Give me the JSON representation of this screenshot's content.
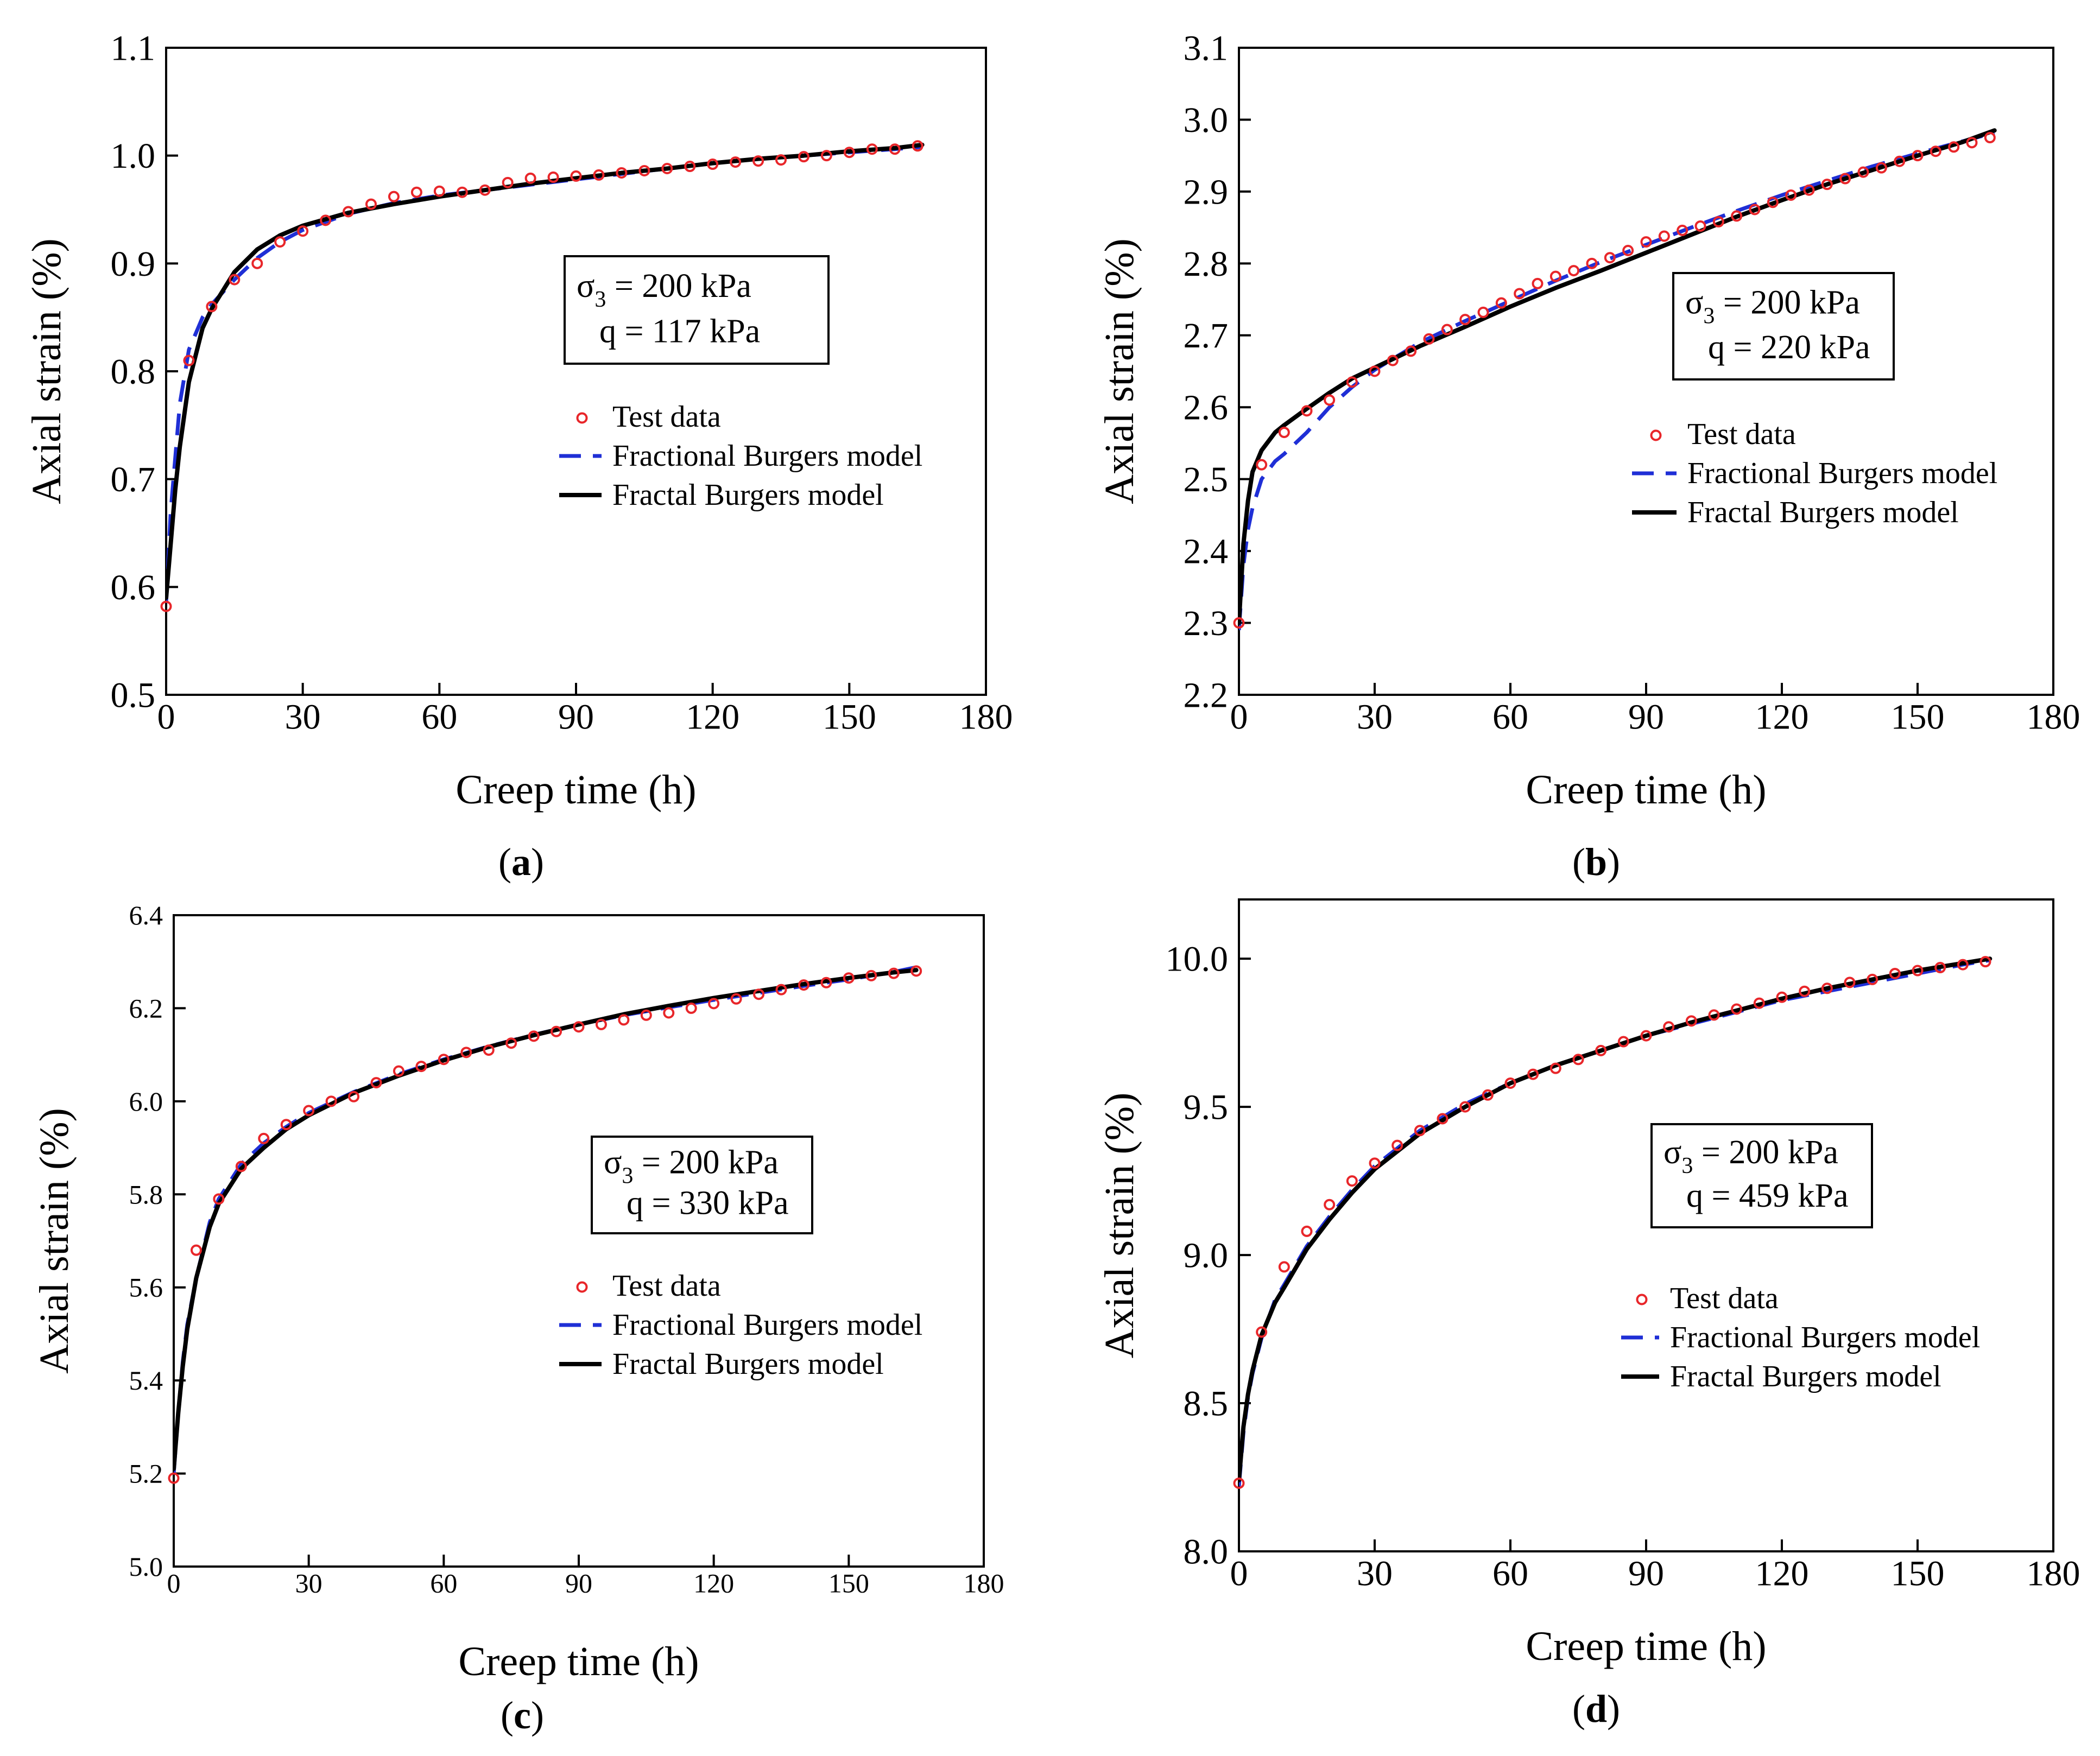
{
  "figure": {
    "panels": [
      {
        "id": "a",
        "label_open": "(",
        "label_letter": "a",
        "label_close": ")",
        "annotation": {
          "line1_prefix": "σ",
          "line1_sub": "3",
          "line1_suffix": " = 200 kPa",
          "line2": "q = 117 kPa"
        }
      },
      {
        "id": "b",
        "label_open": "(",
        "label_letter": "b",
        "label_close": ")",
        "annotation": {
          "line1_prefix": "σ",
          "line1_sub": "3",
          "line1_suffix": " = 200 kPa",
          "line2": "q = 220 kPa"
        }
      },
      {
        "id": "c",
        "label_open": "(",
        "label_letter": "c",
        "label_close": ")",
        "annotation": {
          "line1_prefix": "σ",
          "line1_sub": "3",
          "line1_suffix": " = 200 kPa",
          "line2": "q = 330 kPa"
        }
      },
      {
        "id": "d",
        "label_open": "(",
        "label_letter": "d",
        "label_close": ")",
        "annotation": {
          "line1_prefix": "σ",
          "line1_sub": "3",
          "line1_suffix": " = 200 kPa",
          "line2": "q = 459 kPa"
        }
      }
    ]
  },
  "colors": {
    "test_data": "#e8262a",
    "fractional": "#1f2fd6",
    "fractal": "#000000",
    "axis": "#000000"
  },
  "chart_data": [
    {
      "id": "a",
      "type": "scatter+line",
      "xlabel": "Creep time (h)",
      "ylabel": "Axial strain (%)",
      "xlim": [
        0,
        180
      ],
      "ylim": [
        0.5,
        1.1
      ],
      "xticks": [
        0,
        30,
        60,
        90,
        120,
        150,
        180
      ],
      "yticks": [
        0.5,
        0.6,
        0.7,
        0.8,
        0.9,
        1.0,
        1.1
      ],
      "yticklabels": [
        "0.5",
        "0.6",
        "0.7",
        "0.8",
        "0.9",
        "1.0",
        "1.1"
      ],
      "legend": [
        "Test  data",
        "Fractional Burgers model",
        "Fractal Burgers model"
      ],
      "series": [
        {
          "name": "Test  data",
          "kind": "markers",
          "x": [
            0,
            5,
            10,
            15,
            20,
            25,
            30,
            35,
            40,
            45,
            50,
            55,
            60,
            65,
            70,
            75,
            80,
            85,
            90,
            95,
            100,
            105,
            110,
            115,
            120,
            125,
            130,
            135,
            140,
            145,
            150,
            155,
            160,
            165
          ],
          "y": [
            0.582,
            0.81,
            0.86,
            0.885,
            0.9,
            0.92,
            0.93,
            0.94,
            0.948,
            0.955,
            0.962,
            0.966,
            0.967,
            0.966,
            0.968,
            0.975,
            0.979,
            0.98,
            0.981,
            0.982,
            0.984,
            0.986,
            0.988,
            0.99,
            0.992,
            0.994,
            0.995,
            0.996,
            0.999,
            1.0,
            1.003,
            1.006,
            1.006,
            1.009
          ]
        },
        {
          "name": "Fractional Burgers model",
          "kind": "dashed",
          "x": [
            0,
            1,
            2,
            3,
            5,
            8,
            10,
            15,
            20,
            25,
            30,
            40,
            50,
            60,
            70,
            80,
            90,
            100,
            110,
            120,
            130,
            140,
            150,
            160,
            166
          ],
          "y": [
            0.585,
            0.67,
            0.72,
            0.77,
            0.82,
            0.85,
            0.862,
            0.885,
            0.905,
            0.92,
            0.931,
            0.946,
            0.956,
            0.963,
            0.968,
            0.973,
            0.978,
            0.983,
            0.988,
            0.993,
            0.997,
            1.0,
            1.003,
            1.006,
            1.008
          ]
        },
        {
          "name": "Fractal Burgers model",
          "kind": "solid",
          "x": [
            0,
            1,
            2,
            3,
            5,
            8,
            10,
            15,
            20,
            25,
            30,
            40,
            50,
            60,
            70,
            80,
            90,
            100,
            110,
            120,
            130,
            140,
            150,
            160,
            166
          ],
          "y": [
            0.59,
            0.64,
            0.69,
            0.73,
            0.79,
            0.84,
            0.858,
            0.892,
            0.913,
            0.926,
            0.935,
            0.947,
            0.955,
            0.962,
            0.968,
            0.974,
            0.979,
            0.984,
            0.988,
            0.993,
            0.997,
            1.0,
            1.004,
            1.007,
            1.01
          ]
        }
      ]
    },
    {
      "id": "b",
      "type": "scatter+line",
      "xlabel": "Creep time (h)",
      "ylabel": "Axial strain (%)",
      "xlim": [
        0,
        180
      ],
      "ylim": [
        2.2,
        3.1
      ],
      "xticks": [
        0,
        30,
        60,
        90,
        120,
        150,
        180
      ],
      "yticks": [
        2.2,
        2.3,
        2.4,
        2.5,
        2.6,
        2.7,
        2.8,
        2.9,
        3.0,
        3.1
      ],
      "yticklabels": [
        "2.2",
        "2.3",
        "2.4",
        "2.5",
        "2.6",
        "2.7",
        "2.8",
        "2.9",
        "3.0",
        "3.1"
      ],
      "legend": [
        "Test  data",
        "Fractional Burgers model",
        "Fractal Burgers model"
      ],
      "series": [
        {
          "name": "Test  data",
          "kind": "markers",
          "x": [
            0,
            5,
            10,
            15,
            20,
            25,
            30,
            34,
            38,
            42,
            46,
            50,
            54,
            58,
            62,
            66,
            70,
            74,
            78,
            82,
            86,
            90,
            94,
            98,
            102,
            106,
            110,
            114,
            118,
            122,
            126,
            130,
            134,
            138,
            142,
            146,
            150,
            154,
            158,
            162,
            166
          ],
          "y": [
            2.3,
            2.52,
            2.565,
            2.595,
            2.61,
            2.635,
            2.65,
            2.665,
            2.678,
            2.695,
            2.708,
            2.722,
            2.732,
            2.745,
            2.758,
            2.772,
            2.782,
            2.79,
            2.8,
            2.808,
            2.818,
            2.83,
            2.838,
            2.846,
            2.852,
            2.858,
            2.866,
            2.875,
            2.885,
            2.895,
            2.902,
            2.91,
            2.918,
            2.927,
            2.933,
            2.942,
            2.95,
            2.956,
            2.962,
            2.968,
            2.975
          ]
        },
        {
          "name": "Fractional Burgers model",
          "kind": "dashed",
          "x": [
            0,
            1,
            2,
            3,
            5,
            8,
            10,
            15,
            20,
            25,
            30,
            40,
            50,
            60,
            70,
            80,
            90,
            100,
            110,
            120,
            130,
            140,
            150,
            160,
            167
          ],
          "y": [
            2.29,
            2.38,
            2.43,
            2.46,
            2.5,
            2.525,
            2.535,
            2.565,
            2.6,
            2.628,
            2.652,
            2.69,
            2.72,
            2.748,
            2.776,
            2.802,
            2.826,
            2.85,
            2.873,
            2.895,
            2.915,
            2.935,
            2.953,
            2.97,
            2.982
          ]
        },
        {
          "name": "Fractal Burgers model",
          "kind": "solid",
          "x": [
            0,
            1,
            2,
            3,
            5,
            8,
            10,
            15,
            20,
            25,
            30,
            40,
            50,
            60,
            70,
            80,
            90,
            100,
            110,
            120,
            130,
            140,
            150,
            160,
            167
          ],
          "y": [
            2.3,
            2.41,
            2.47,
            2.51,
            2.54,
            2.565,
            2.575,
            2.598,
            2.62,
            2.64,
            2.655,
            2.685,
            2.712,
            2.74,
            2.766,
            2.79,
            2.815,
            2.84,
            2.865,
            2.888,
            2.91,
            2.93,
            2.95,
            2.969,
            2.985
          ]
        }
      ]
    },
    {
      "id": "c",
      "type": "scatter+line",
      "xlabel": "Creep time (h)",
      "ylabel": "Axial strain (%)",
      "xlim": [
        0,
        180
      ],
      "ylim": [
        5.0,
        6.4
      ],
      "xticks": [
        0,
        30,
        60,
        90,
        120,
        150,
        180
      ],
      "yticks": [
        5.0,
        5.2,
        5.4,
        5.6,
        5.8,
        6.0,
        6.2,
        6.4
      ],
      "yticklabels": [
        "5.0",
        "5.2",
        "5.4",
        "5.6",
        "5.8",
        "6.0",
        "6.2",
        "6.4"
      ],
      "legend": [
        "Test data",
        "Fractional Burgers model",
        "Fractal Burgers model"
      ],
      "series": [
        {
          "name": "Test data",
          "kind": "markers",
          "x": [
            0,
            5,
            10,
            15,
            20,
            25,
            30,
            35,
            40,
            45,
            50,
            55,
            60,
            65,
            70,
            75,
            80,
            85,
            90,
            95,
            100,
            105,
            110,
            115,
            120,
            125,
            130,
            135,
            140,
            145,
            150,
            155,
            160,
            165
          ],
          "y": [
            5.19,
            5.68,
            5.79,
            5.86,
            5.92,
            5.95,
            5.98,
            6.0,
            6.01,
            6.04,
            6.065,
            6.075,
            6.09,
            6.105,
            6.11,
            6.125,
            6.14,
            6.15,
            6.16,
            6.165,
            6.175,
            6.185,
            6.19,
            6.2,
            6.21,
            6.22,
            6.23,
            6.24,
            6.25,
            6.255,
            6.265,
            6.27,
            6.275,
            6.28
          ]
        },
        {
          "name": "Fractional Burgers model",
          "kind": "dashed",
          "x": [
            0,
            1,
            2,
            3,
            5,
            8,
            10,
            15,
            20,
            25,
            30,
            40,
            50,
            60,
            70,
            80,
            90,
            100,
            110,
            120,
            130,
            140,
            150,
            160,
            165
          ],
          "y": [
            5.2,
            5.33,
            5.44,
            5.52,
            5.62,
            5.74,
            5.79,
            5.865,
            5.91,
            5.945,
            5.975,
            6.02,
            6.058,
            6.09,
            6.118,
            6.143,
            6.165,
            6.185,
            6.202,
            6.218,
            6.233,
            6.248,
            6.262,
            6.278,
            6.288
          ]
        },
        {
          "name": "Fractal Burgers model",
          "kind": "solid",
          "x": [
            0,
            1,
            2,
            3,
            5,
            8,
            10,
            15,
            20,
            25,
            30,
            40,
            50,
            60,
            70,
            80,
            90,
            100,
            110,
            120,
            130,
            140,
            150,
            160,
            165
          ],
          "y": [
            5.21,
            5.33,
            5.43,
            5.51,
            5.62,
            5.73,
            5.78,
            5.855,
            5.9,
            5.94,
            5.97,
            6.018,
            6.055,
            6.088,
            6.117,
            6.142,
            6.165,
            6.187,
            6.205,
            6.222,
            6.237,
            6.252,
            6.265,
            6.277,
            6.282
          ]
        }
      ]
    },
    {
      "id": "d",
      "type": "scatter+line",
      "xlabel": "Creep time (h)",
      "ylabel": "Axial strain (%)",
      "xlim": [
        0,
        180
      ],
      "ylim": [
        8.0,
        10.2
      ],
      "xticks": [
        0,
        30,
        60,
        90,
        120,
        150,
        180
      ],
      "yticks": [
        8.0,
        8.5,
        9.0,
        9.5,
        10.0
      ],
      "yticklabels": [
        "8.0",
        "8.5",
        "9.0",
        "9.5",
        "10.0"
      ],
      "legend": [
        "Test  data",
        "Fractional Burgers model",
        "Fractal Burgers model"
      ],
      "series": [
        {
          "name": "Test  data",
          "kind": "markers",
          "x": [
            0,
            5,
            10,
            15,
            20,
            25,
            30,
            35,
            40,
            45,
            50,
            55,
            60,
            65,
            70,
            75,
            80,
            85,
            90,
            95,
            100,
            105,
            110,
            115,
            120,
            125,
            130,
            135,
            140,
            145,
            150,
            155,
            160,
            165
          ],
          "y": [
            8.23,
            8.74,
            8.96,
            9.08,
            9.17,
            9.25,
            9.31,
            9.37,
            9.42,
            9.46,
            9.5,
            9.54,
            9.58,
            9.61,
            9.63,
            9.66,
            9.69,
            9.72,
            9.74,
            9.77,
            9.79,
            9.81,
            9.83,
            9.85,
            9.87,
            9.89,
            9.9,
            9.92,
            9.93,
            9.95,
            9.96,
            9.97,
            9.98,
            9.99
          ]
        },
        {
          "name": "Fractional Burgers model",
          "kind": "dashed",
          "x": [
            0,
            1,
            2,
            3,
            5,
            8,
            10,
            15,
            20,
            25,
            30,
            40,
            50,
            60,
            70,
            80,
            90,
            100,
            110,
            120,
            130,
            140,
            150,
            160,
            166
          ],
          "y": [
            8.22,
            8.4,
            8.52,
            8.6,
            8.72,
            8.85,
            8.9,
            9.03,
            9.13,
            9.22,
            9.3,
            9.42,
            9.51,
            9.58,
            9.64,
            9.69,
            9.74,
            9.78,
            9.82,
            9.86,
            9.89,
            9.92,
            9.95,
            9.98,
            9.995
          ]
        },
        {
          "name": "Fractal Burgers model",
          "kind": "solid",
          "x": [
            0,
            1,
            2,
            3,
            5,
            8,
            10,
            15,
            20,
            25,
            30,
            40,
            50,
            60,
            70,
            80,
            90,
            100,
            110,
            120,
            130,
            140,
            150,
            160,
            166
          ],
          "y": [
            8.24,
            8.42,
            8.53,
            8.61,
            8.73,
            8.84,
            8.89,
            9.02,
            9.12,
            9.21,
            9.29,
            9.41,
            9.5,
            9.58,
            9.64,
            9.69,
            9.74,
            9.785,
            9.825,
            9.865,
            9.9,
            9.93,
            9.96,
            9.985,
            10.0
          ]
        }
      ]
    }
  ]
}
